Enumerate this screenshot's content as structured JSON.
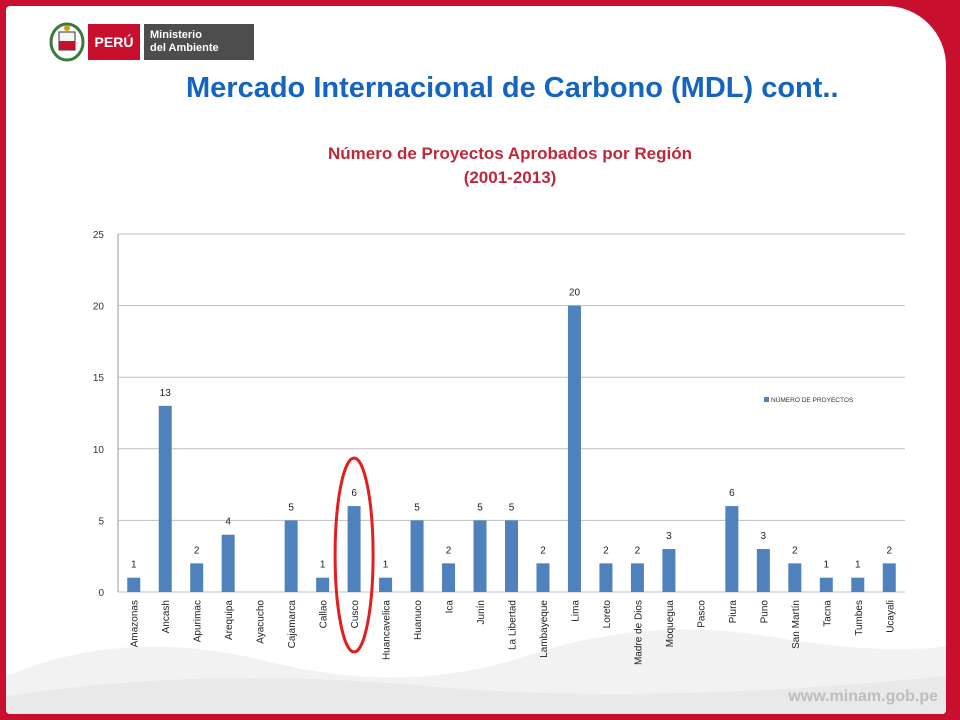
{
  "header": {
    "country": "PERÚ",
    "ministry_line1": "Ministerio",
    "ministry_line2": "del Ambiente"
  },
  "slide_title": "Mercado Internacional de Carbono (MDL) cont..",
  "footer_url": "www.minam.gob.pe",
  "colors": {
    "bar": "#4f81bd",
    "title_blue": "#1565c0",
    "chart_title": "#c0283a",
    "frame": "#c8102e",
    "highlight": "#e02020"
  },
  "chart_data": {
    "type": "bar",
    "title_line1": "Número de Proyectos Aprobados por Región",
    "title_line2": "(2001-2013)",
    "categories": [
      "Amazonas",
      "Ancash",
      "Apurimac",
      "Arequipa",
      "Ayacucho",
      "Cajamarca",
      "Callao",
      "Cusco",
      "Huancavelica",
      "Huanuco",
      "Ica",
      "Junín",
      "La Libertad",
      "Lambayeque",
      "Lima",
      "Loreto",
      "Madre de Dios",
      "Moquegua",
      "Pasco",
      "Piura",
      "Puno",
      "San Martín",
      "Tacna",
      "Tumbes",
      "Ucayali"
    ],
    "series": [
      {
        "name": "NÚMERO DE PROYECTOS",
        "values": [
          1,
          13,
          2,
          4,
          0,
          5,
          1,
          6,
          1,
          5,
          2,
          5,
          5,
          2,
          20,
          2,
          2,
          3,
          0,
          6,
          3,
          2,
          1,
          1,
          2
        ]
      }
    ],
    "data_labels": [
      "1",
      "13",
      "2",
      "4",
      "",
      "5",
      "1",
      "6",
      "1",
      "5",
      "2",
      "5",
      "5",
      "2",
      "20",
      "2",
      "2",
      "3",
      "",
      "6",
      "3",
      "2",
      "1",
      "1",
      "2"
    ],
    "ylim": [
      0,
      25
    ],
    "yticks": [
      0,
      5,
      10,
      15,
      20,
      25
    ],
    "grid": true,
    "legend_position": "right",
    "highlighted_category": "Cusco"
  }
}
